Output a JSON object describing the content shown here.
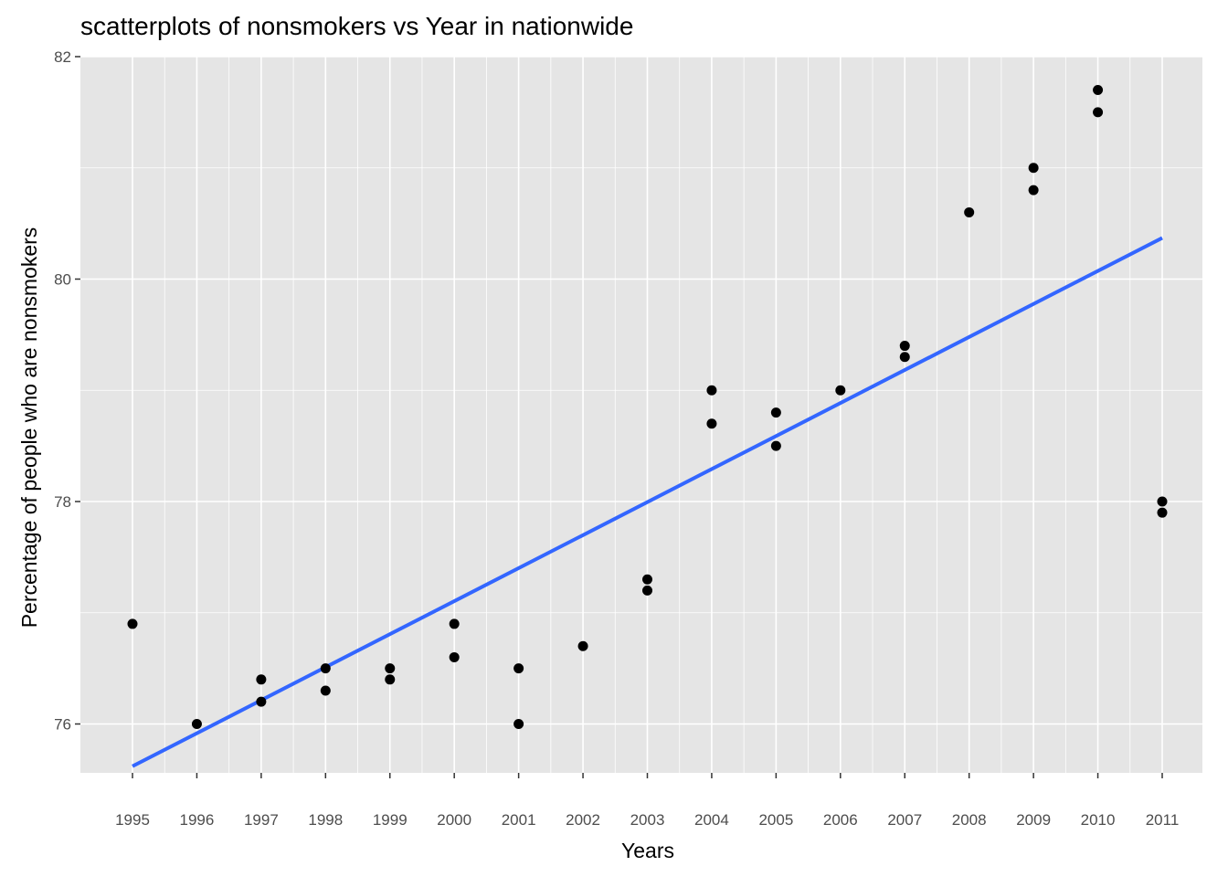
{
  "chart_data": {
    "type": "scatter",
    "title": "scatterplots of nonsmokers vs Year in nationwide",
    "xlabel": "Years",
    "ylabel": "Percentage of people who are nonsmokers",
    "x_categories": [
      "1995",
      "1996",
      "1997",
      "1998",
      "1999",
      "2000",
      "2001",
      "2002",
      "2003",
      "2004",
      "2005",
      "2006",
      "2007",
      "2008",
      "2009",
      "2010",
      "2011"
    ],
    "y_ticks": [
      76,
      78,
      80,
      82
    ],
    "y_tick_labels": [
      "76",
      "78",
      "80",
      "82"
    ],
    "ylim": [
      75.4,
      82.0
    ],
    "grid": true,
    "points": [
      {
        "x": "1995",
        "y": 76.9
      },
      {
        "x": "1996",
        "y": 76.0
      },
      {
        "x": "1997",
        "y": 76.4
      },
      {
        "x": "1997",
        "y": 76.2
      },
      {
        "x": "1998",
        "y": 76.5
      },
      {
        "x": "1998",
        "y": 76.3
      },
      {
        "x": "1999",
        "y": 76.5
      },
      {
        "x": "1999",
        "y": 76.4
      },
      {
        "x": "2000",
        "y": 76.9
      },
      {
        "x": "2000",
        "y": 76.6
      },
      {
        "x": "2001",
        "y": 76.5
      },
      {
        "x": "2001",
        "y": 76.0
      },
      {
        "x": "2002",
        "y": 76.7
      },
      {
        "x": "2003",
        "y": 77.3
      },
      {
        "x": "2003",
        "y": 77.2
      },
      {
        "x": "2004",
        "y": 79.0
      },
      {
        "x": "2004",
        "y": 78.7
      },
      {
        "x": "2005",
        "y": 78.8
      },
      {
        "x": "2005",
        "y": 78.5
      },
      {
        "x": "2006",
        "y": 79.0
      },
      {
        "x": "2007",
        "y": 79.4
      },
      {
        "x": "2007",
        "y": 79.3
      },
      {
        "x": "2008",
        "y": 80.6
      },
      {
        "x": "2009",
        "y": 81.0
      },
      {
        "x": "2009",
        "y": 80.8
      },
      {
        "x": "2010",
        "y": 81.7
      },
      {
        "x": "2010",
        "y": 81.5
      },
      {
        "x": "2011",
        "y": 78.0
      },
      {
        "x": "2011",
        "y": 77.9
      }
    ],
    "trend_line": {
      "x_start": "1995",
      "y_start": 75.62,
      "x_end": "2011",
      "y_end": 80.37
    },
    "colors": {
      "panel_background": "#e5e5e5",
      "grid": "#ffffff",
      "point": "#000000",
      "trend_line": "#3366ff"
    }
  }
}
